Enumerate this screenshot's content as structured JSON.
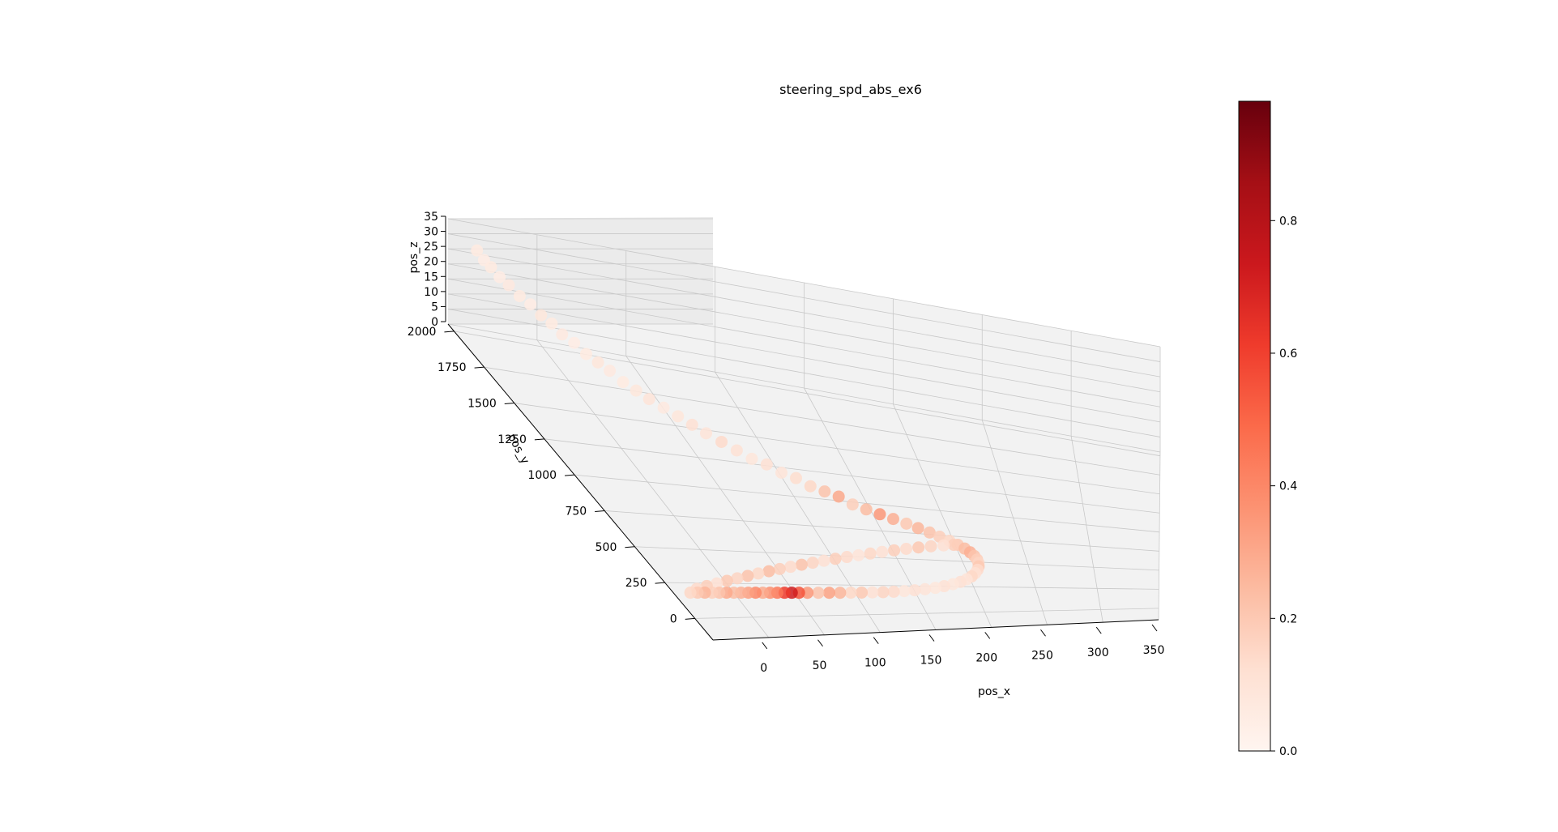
{
  "chart_data": {
    "type": "scatter",
    "title": "steering_spd_abs_ex6",
    "xlabel": "pos_x",
    "ylabel": "pos_y",
    "zlabel": "pos_z",
    "xlim": [
      -50,
      350
    ],
    "ylim": [
      -150,
      2050
    ],
    "zlim": [
      0,
      35
    ],
    "xticks": [
      0,
      50,
      100,
      150,
      200,
      250,
      300,
      350
    ],
    "yticks": [
      0,
      250,
      500,
      750,
      1000,
      1250,
      1500,
      1750,
      2000
    ],
    "zticks": [
      0,
      5,
      10,
      15,
      20,
      25,
      30,
      35
    ],
    "grid": true,
    "colormap": "Reds",
    "color_range": [
      0.0,
      0.98
    ],
    "colorbar_ticks": [
      0.0,
      0.2,
      0.4,
      0.6,
      0.8
    ],
    "colorbar_tick_labels": [
      "0.0",
      "0.2",
      "0.4",
      "0.6",
      "0.8"
    ],
    "pane_color": "#f2f2f2",
    "grid_color": "#c8c8c8",
    "points_note_free": true,
    "points": [
      [
        -38,
        1985,
        34,
        0.06
      ],
      [
        -36,
        1955,
        32,
        0.05
      ],
      [
        -34,
        1925,
        31,
        0.06
      ],
      [
        -31,
        1895,
        29,
        0.05
      ],
      [
        -28,
        1860,
        28,
        0.07
      ],
      [
        -24,
        1825,
        26,
        0.06
      ],
      [
        -20,
        1790,
        25,
        0.05
      ],
      [
        -16,
        1755,
        23,
        0.08
      ],
      [
        -12,
        1720,
        22,
        0.06
      ],
      [
        -8,
        1685,
        20,
        0.07
      ],
      [
        -3,
        1650,
        19,
        0.05
      ],
      [
        2,
        1615,
        17,
        0.06
      ],
      [
        7,
        1580,
        16,
        0.09
      ],
      [
        12,
        1545,
        15,
        0.07
      ],
      [
        18,
        1510,
        13,
        0.06
      ],
      [
        24,
        1475,
        12,
        0.08
      ],
      [
        30,
        1440,
        11,
        0.1
      ],
      [
        37,
        1405,
        10,
        0.07
      ],
      [
        44,
        1370,
        9,
        0.09
      ],
      [
        51,
        1335,
        8,
        0.12
      ],
      [
        58,
        1300,
        7,
        0.1
      ],
      [
        66,
        1265,
        6,
        0.14
      ],
      [
        74,
        1230,
        5,
        0.11
      ],
      [
        82,
        1195,
        4,
        0.09
      ],
      [
        90,
        1160,
        4,
        0.12
      ],
      [
        98,
        1125,
        3,
        0.1
      ],
      [
        106,
        1090,
        3,
        0.13
      ],
      [
        114,
        1055,
        2,
        0.15
      ],
      [
        122,
        1020,
        2,
        0.22
      ],
      [
        130,
        985,
        2,
        0.3
      ],
      [
        138,
        950,
        1,
        0.18
      ],
      [
        146,
        915,
        1,
        0.24
      ],
      [
        154,
        880,
        1,
        0.35
      ],
      [
        162,
        845,
        1,
        0.28
      ],
      [
        170,
        810,
        1,
        0.2
      ],
      [
        177,
        775,
        1,
        0.26
      ],
      [
        184,
        740,
        1,
        0.22
      ],
      [
        190,
        705,
        1,
        0.18
      ],
      [
        196,
        670,
        1,
        0.15
      ],
      [
        201,
        635,
        1,
        0.2
      ],
      [
        205,
        600,
        1,
        0.24
      ],
      [
        208,
        565,
        1,
        0.28
      ],
      [
        210,
        530,
        1,
        0.22
      ],
      [
        211,
        495,
        1,
        0.18
      ],
      [
        211,
        460,
        1,
        0.16
      ],
      [
        210,
        425,
        1,
        0.2
      ],
      [
        208,
        390,
        1,
        0.14
      ],
      [
        205,
        355,
        1,
        0.12
      ],
      [
        201,
        322,
        1,
        0.15
      ],
      [
        196,
        292,
        1,
        0.1
      ],
      [
        190,
        265,
        1,
        0.12
      ],
      [
        183,
        242,
        1,
        0.09
      ],
      [
        175,
        222,
        1,
        0.11
      ],
      [
        167,
        205,
        1,
        0.08
      ],
      [
        158,
        192,
        1,
        0.1
      ],
      [
        149,
        182,
        1,
        0.12
      ],
      [
        140,
        174,
        1,
        0.09
      ],
      [
        131,
        168,
        1,
        0.14
      ],
      [
        122,
        164,
        1,
        0.16
      ],
      [
        113,
        162,
        1,
        0.12
      ],
      [
        104,
        160,
        1,
        0.2
      ],
      [
        95,
        159,
        1,
        0.15
      ],
      [
        86,
        158,
        1,
        0.26
      ],
      [
        77,
        158,
        1,
        0.32
      ],
      [
        68,
        158,
        1,
        0.22
      ],
      [
        59,
        158,
        1,
        0.35
      ],
      [
        52,
        158,
        1,
        0.55
      ],
      [
        46,
        158,
        1,
        0.72
      ],
      [
        40,
        158,
        1,
        0.62
      ],
      [
        34,
        158,
        1,
        0.45
      ],
      [
        28,
        158,
        1,
        0.38
      ],
      [
        22,
        158,
        1,
        0.3
      ],
      [
        16,
        158,
        1,
        0.4
      ],
      [
        10,
        158,
        1,
        0.33
      ],
      [
        4,
        158,
        1,
        0.28
      ],
      [
        -2,
        158,
        1,
        0.24
      ],
      [
        -8,
        158,
        1,
        0.3
      ],
      [
        -14,
        158,
        1,
        0.22
      ],
      [
        -20,
        158,
        1,
        0.18
      ],
      [
        -26,
        158,
        1,
        0.26
      ],
      [
        -32,
        158,
        1,
        0.2
      ],
      [
        -38,
        158,
        1,
        0.15
      ],
      [
        -30,
        186,
        1,
        0.14
      ],
      [
        -20,
        206,
        1,
        0.18
      ],
      [
        -10,
        226,
        1,
        0.12
      ],
      [
        0,
        246,
        1,
        0.2
      ],
      [
        10,
        266,
        1,
        0.16
      ],
      [
        20,
        286,
        1,
        0.22
      ],
      [
        30,
        306,
        1,
        0.15
      ],
      [
        40,
        326,
        1,
        0.24
      ],
      [
        50,
        346,
        1,
        0.18
      ],
      [
        60,
        366,
        1,
        0.14
      ],
      [
        70,
        386,
        1,
        0.22
      ],
      [
        80,
        406,
        1,
        0.16
      ],
      [
        90,
        426,
        1,
        0.12
      ],
      [
        100,
        446,
        1,
        0.18
      ],
      [
        110,
        466,
        1,
        0.14
      ],
      [
        120,
        486,
        1,
        0.1
      ],
      [
        130,
        506,
        1,
        0.15
      ],
      [
        140,
        526,
        1,
        0.12
      ],
      [
        150,
        546,
        1,
        0.18
      ],
      [
        160,
        566,
        1,
        0.14
      ],
      [
        170,
        586,
        1,
        0.2
      ],
      [
        180,
        604,
        1,
        0.16
      ],
      [
        190,
        620,
        1,
        0.12
      ],
      [
        198,
        632,
        1,
        0.18
      ]
    ]
  }
}
